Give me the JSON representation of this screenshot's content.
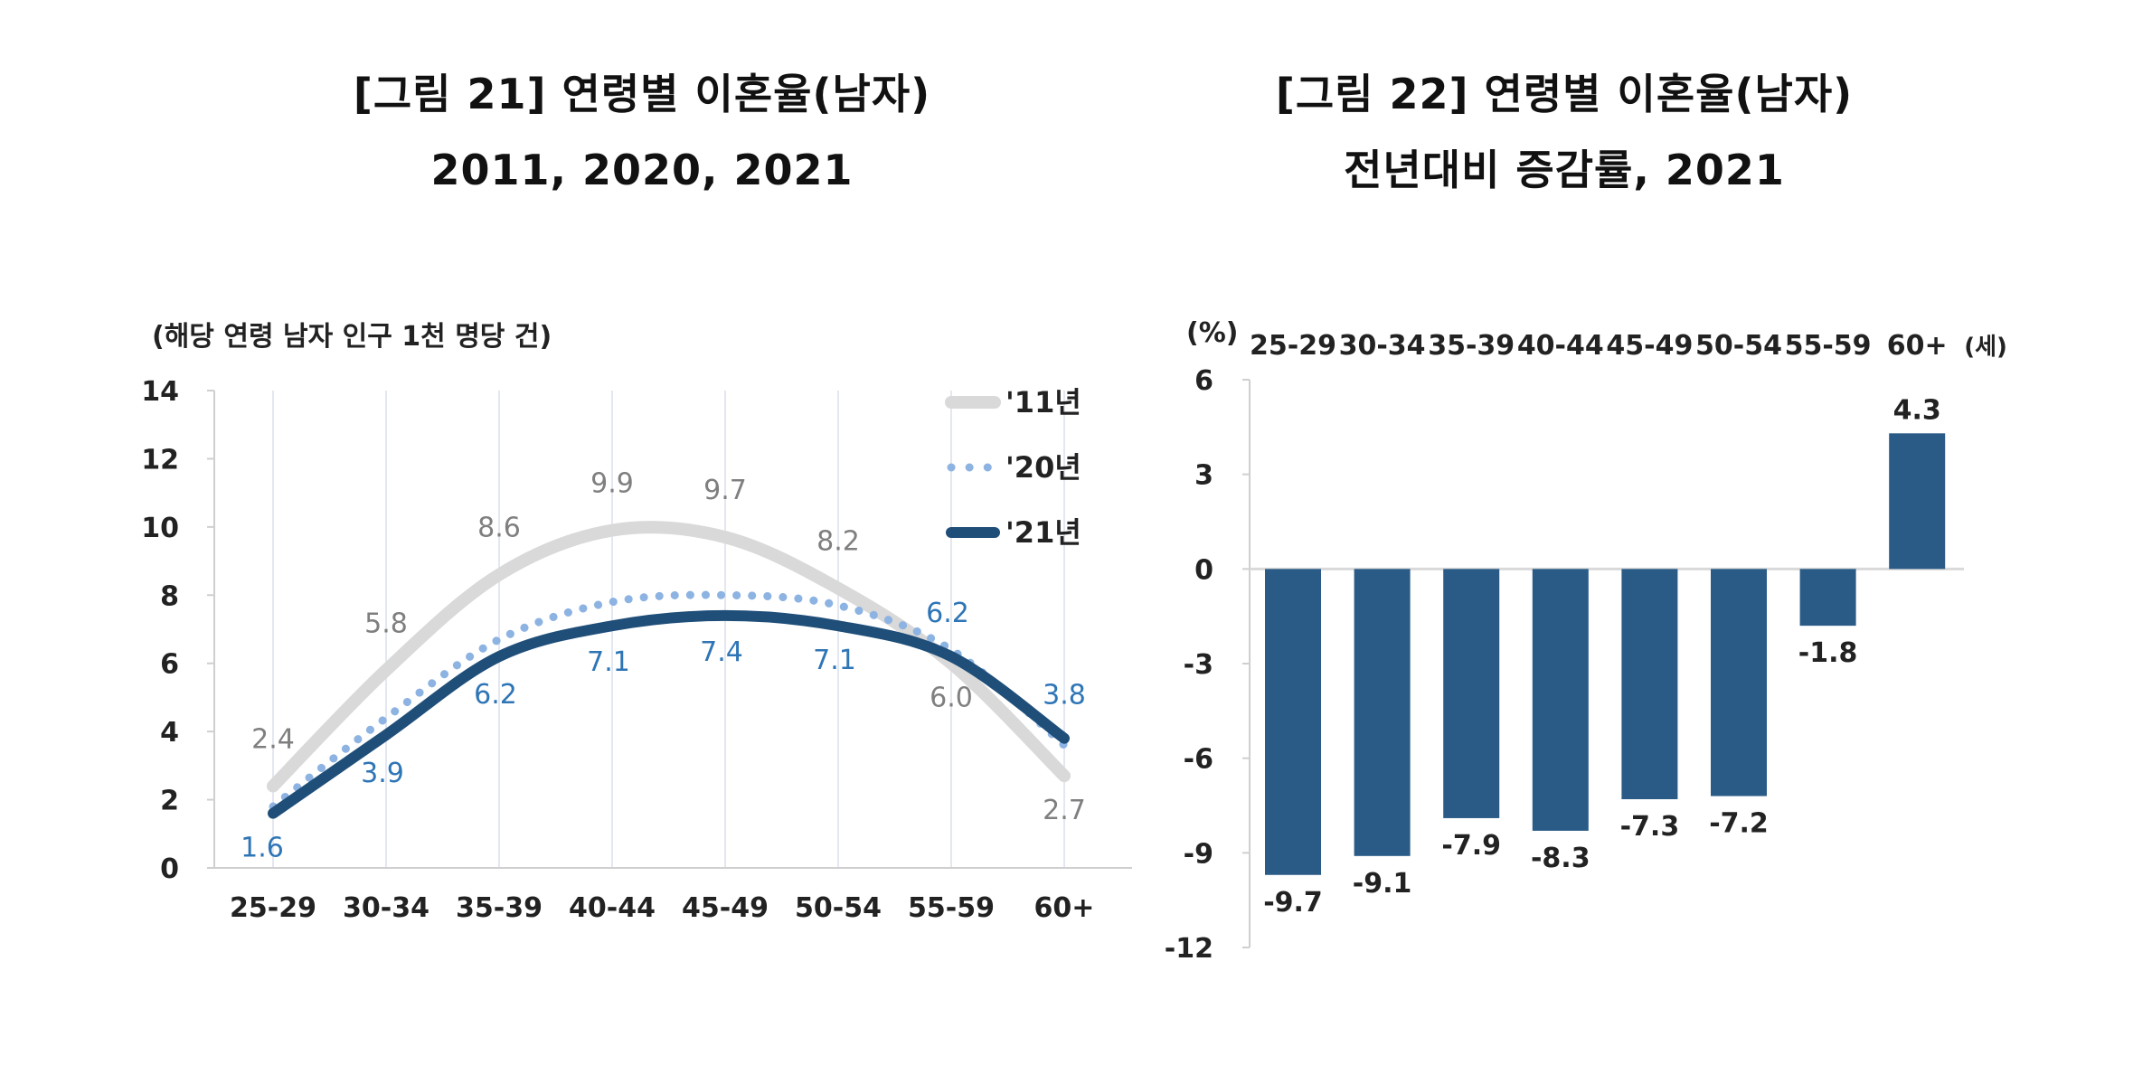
{
  "figures": {
    "left": {
      "title_line1": "[그림 21] 연령별 이혼율(남자)",
      "title_line2": "2011, 2020, 2021"
    },
    "right": {
      "title_line1": "[그림 22] 연령별 이혼율(남자)",
      "title_line2": "전년대비 증감률, 2021"
    }
  },
  "chart_data": [
    {
      "type": "line",
      "title": "[그림 21] 연령별 이혼율(남자) 2011, 2020, 2021",
      "unit_label": "(해당 연령 남자 인구 1천 명당 건)",
      "categories": [
        "25-29",
        "30-34",
        "35-39",
        "40-44",
        "45-49",
        "50-54",
        "55-59",
        "60+"
      ],
      "ylim": [
        0,
        14
      ],
      "yticks": [
        0,
        2,
        4,
        6,
        8,
        10,
        12,
        14
      ],
      "legend_position": "top-right",
      "series": [
        {
          "name": "'11년",
          "values": [
            2.4,
            5.8,
            8.6,
            9.9,
            9.7,
            8.2,
            6.0,
            2.7
          ],
          "color": "#d9d9d9",
          "style": "solid-thick",
          "label_color": "#7f7f7f",
          "labels_shown": true
        },
        {
          "name": "'20년",
          "values": [
            1.8,
            4.4,
            6.7,
            7.8,
            8.0,
            7.7,
            6.4,
            3.6
          ],
          "color": "#8db3e2",
          "style": "dotted",
          "labels_shown": false
        },
        {
          "name": "'21년",
          "values": [
            1.6,
            3.9,
            6.2,
            7.1,
            7.4,
            7.1,
            6.2,
            3.8
          ],
          "color": "#1f4e79",
          "style": "solid-thick",
          "label_color": "#2e75b6",
          "labels_shown": true
        }
      ]
    },
    {
      "type": "bar",
      "title": "[그림 22] 연령별 이혼율(남자) 전년대비 증감률, 2021",
      "unit_label": "(%)",
      "category_unit": "(세)",
      "categories": [
        "25-29",
        "30-34",
        "35-39",
        "40-44",
        "45-49",
        "50-54",
        "55-59",
        "60+"
      ],
      "values": [
        -9.7,
        -9.1,
        -7.9,
        -8.3,
        -7.3,
        -7.2,
        -1.8,
        4.3
      ],
      "value_labels": [
        "-9.7",
        "-9.1",
        "-7.9",
        "-8.3",
        "-7.3",
        "-7.2",
        "-1.8",
        "4.3"
      ],
      "ylim": [
        -12,
        6
      ],
      "yticks": [
        6,
        3,
        0,
        -3,
        -6,
        -9,
        -12
      ],
      "bar_color": "#2a5b86",
      "category_axis_position": "top"
    }
  ]
}
